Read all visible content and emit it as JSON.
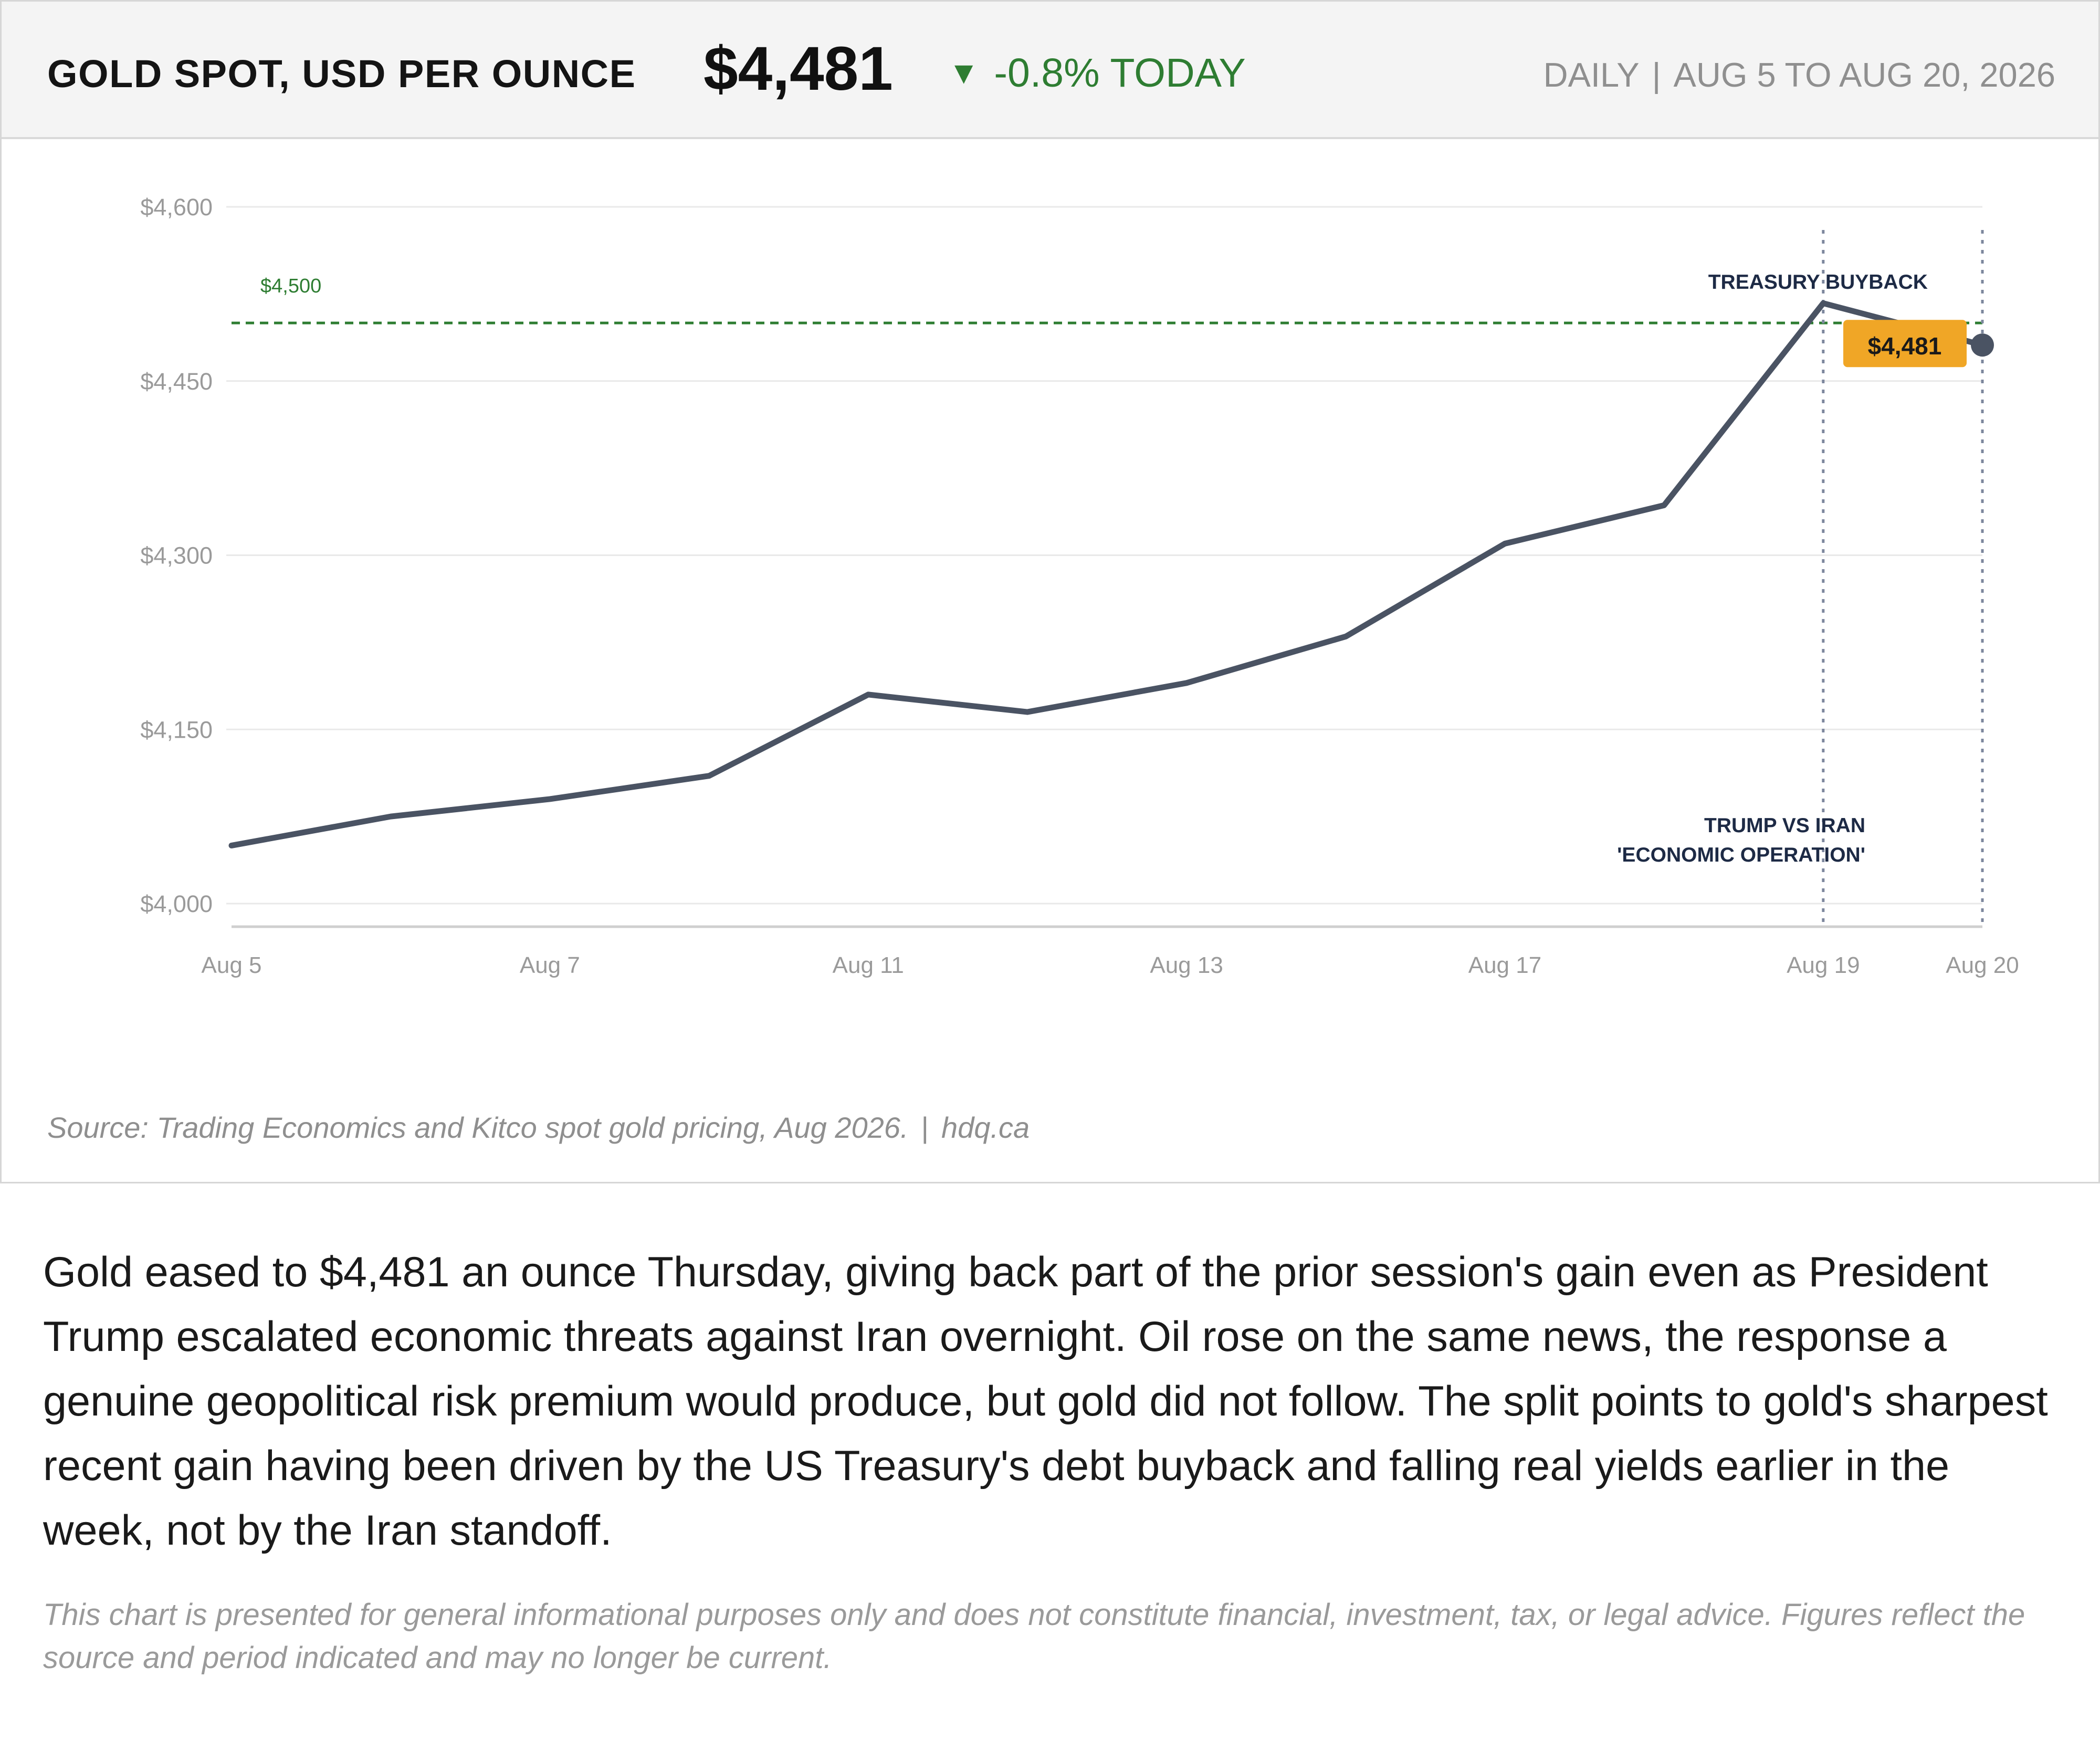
{
  "header": {
    "title": "GOLD SPOT, USD PER OUNCE",
    "price": "$4,481",
    "change_arrow": "▼",
    "change": "-0.8% TODAY",
    "frequency": "DAILY",
    "separator": "|",
    "range": "AUG 5 TO AUG 20, 2026"
  },
  "colors": {
    "line": "#4a5363",
    "change_green": "#2e7d32",
    "reference_green": "#2e7d32",
    "callout_bg": "#f0a626",
    "event_line": "#7d879d",
    "event_label": "#1d2a45",
    "grid": "#e9e9e9",
    "axis": "#cfcfcf",
    "tick_text": "#9a9a9a"
  },
  "chart_data": {
    "type": "line",
    "x": [
      "Aug 5",
      "Aug 6",
      "Aug 7",
      "Aug 10",
      "Aug 11",
      "Aug 12",
      "Aug 13",
      "Aug 14",
      "Aug 17",
      "Aug 18",
      "Aug 19",
      "Aug 20"
    ],
    "x_tick_labels": [
      "Aug 5",
      "Aug 7",
      "Aug 11",
      "Aug 13",
      "Aug 17",
      "Aug 19",
      "Aug 20"
    ],
    "series": [
      {
        "values": [
          4050,
          4075,
          4090,
          4110,
          4180,
          4165,
          4190,
          4230,
          4310,
          4343,
          4517,
          4481
        ]
      }
    ],
    "y_ticks": [
      4000,
      4150,
      4300,
      4450,
      4600
    ],
    "y_tick_labels": [
      "$4,000",
      "$4,150",
      "$4,300",
      "$4,450",
      "$4,600"
    ],
    "ylim": [
      4000,
      4600
    ],
    "grid": true,
    "reference_line": {
      "value": 4500,
      "label": "$4,500"
    },
    "events": [
      {
        "date": "Aug 19",
        "label_lines": [
          "TREASURY BUYBACK"
        ],
        "label_position": "top"
      },
      {
        "date": "Aug 20",
        "label_lines": [
          "TRUMP VS IRAN",
          "'ECONOMIC OPERATION'"
        ],
        "label_position": "bottom"
      }
    ],
    "last_value_label": "$4,481",
    "title": "GOLD SPOT, USD PER OUNCE",
    "xlabel": "",
    "ylabel": ""
  },
  "source": {
    "text": "Source: Trading Economics and Kitco spot gold pricing, Aug 2026.",
    "separator": "|",
    "site": "hdq.ca"
  },
  "article": {
    "paragraph": "Gold eased to $4,481 an ounce Thursday, giving back part of the prior session's gain even as President Trump escalated economic threats against Iran overnight. Oil rose on the same news, the response a genuine geopolitical risk premium would produce, but gold did not follow. The split points to gold's sharpest recent gain having been driven by the US Treasury's debt buyback and falling real yields earlier in the week, not by the Iran standoff.",
    "disclaimer": "This chart is presented for general informational purposes only and does not constitute financial, investment, tax, or legal advice. Figures reflect the source and period indicated and may no longer be current."
  }
}
